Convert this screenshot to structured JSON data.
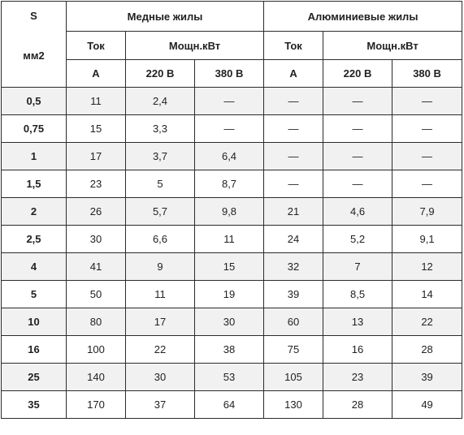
{
  "header": {
    "size_label": "S",
    "size_unit": "мм2",
    "copper_title": "Медные жилы",
    "aluminum_title": "Алюминиевые жилы",
    "current_label": "Ток",
    "power_label": "Мощн.кВт",
    "current_unit": "A",
    "v220": "220 В",
    "v380": "380 В"
  },
  "rows": [
    {
      "s": "0,5",
      "cu_a": "11",
      "cu_220": "2,4",
      "cu_380": "—",
      "al_a": "—",
      "al_220": "—",
      "al_380": "—"
    },
    {
      "s": "0,75",
      "cu_a": "15",
      "cu_220": "3,3",
      "cu_380": "—",
      "al_a": "—",
      "al_220": "—",
      "al_380": "—"
    },
    {
      "s": "1",
      "cu_a": "17",
      "cu_220": "3,7",
      "cu_380": "6,4",
      "al_a": "—",
      "al_220": "—",
      "al_380": "—"
    },
    {
      "s": "1,5",
      "cu_a": "23",
      "cu_220": "5",
      "cu_380": "8,7",
      "al_a": "—",
      "al_220": "—",
      "al_380": "—"
    },
    {
      "s": "2",
      "cu_a": "26",
      "cu_220": "5,7",
      "cu_380": "9,8",
      "al_a": "21",
      "al_220": "4,6",
      "al_380": "7,9"
    },
    {
      "s": "2,5",
      "cu_a": "30",
      "cu_220": "6,6",
      "cu_380": "11",
      "al_a": "24",
      "al_220": "5,2",
      "al_380": "9,1"
    },
    {
      "s": "4",
      "cu_a": "41",
      "cu_220": "9",
      "cu_380": "15",
      "al_a": "32",
      "al_220": "7",
      "al_380": "12"
    },
    {
      "s": "5",
      "cu_a": "50",
      "cu_220": "11",
      "cu_380": "19",
      "al_a": "39",
      "al_220": "8,5",
      "al_380": "14"
    },
    {
      "s": "10",
      "cu_a": "80",
      "cu_220": "17",
      "cu_380": "30",
      "al_a": "60",
      "al_220": "13",
      "al_380": "22"
    },
    {
      "s": "16",
      "cu_a": "100",
      "cu_220": "22",
      "cu_380": "38",
      "al_a": "75",
      "al_220": "16",
      "al_380": "28"
    },
    {
      "s": "25",
      "cu_a": "140",
      "cu_220": "30",
      "cu_380": "53",
      "al_a": "105",
      "al_220": "23",
      "al_380": "39"
    },
    {
      "s": "35",
      "cu_a": "170",
      "cu_220": "37",
      "cu_380": "64",
      "al_a": "130",
      "al_220": "28",
      "al_380": "49"
    }
  ]
}
